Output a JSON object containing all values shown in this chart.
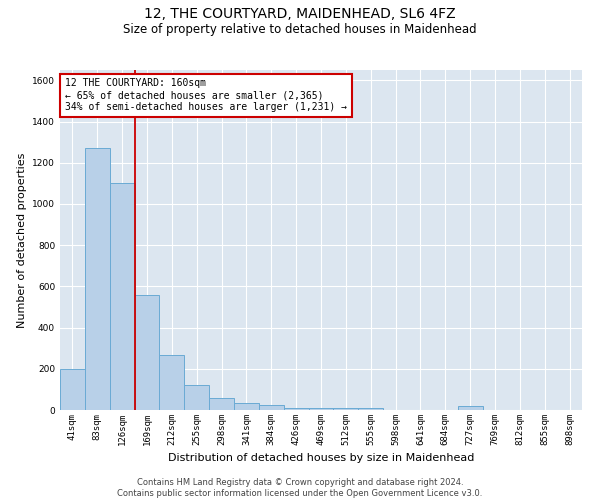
{
  "title_line1": "12, THE COURTYARD, MAIDENHEAD, SL6 4FZ",
  "title_line2": "Size of property relative to detached houses in Maidenhead",
  "xlabel": "Distribution of detached houses by size in Maidenhead",
  "ylabel": "Number of detached properties",
  "footer_line1": "Contains HM Land Registry data © Crown copyright and database right 2024.",
  "footer_line2": "Contains public sector information licensed under the Open Government Licence v3.0.",
  "bar_labels": [
    "41sqm",
    "83sqm",
    "126sqm",
    "169sqm",
    "212sqm",
    "255sqm",
    "298sqm",
    "341sqm",
    "384sqm",
    "426sqm",
    "469sqm",
    "512sqm",
    "555sqm",
    "598sqm",
    "641sqm",
    "684sqm",
    "727sqm",
    "769sqm",
    "812sqm",
    "855sqm",
    "898sqm"
  ],
  "bar_values": [
    197,
    1270,
    1100,
    557,
    265,
    120,
    57,
    32,
    22,
    10,
    10,
    10,
    10,
    0,
    0,
    0,
    18,
    0,
    0,
    0,
    0
  ],
  "bar_color": "#b8d0e8",
  "bar_edge_color": "#6aaad4",
  "background_color": "#dce6f0",
  "grid_color": "#ffffff",
  "vline_color": "#cc0000",
  "vline_pos": 2.5,
  "annotation_text": "12 THE COURTYARD: 160sqm\n← 65% of detached houses are smaller (2,365)\n34% of semi-detached houses are larger (1,231) →",
  "annotation_box_color": "#cc0000",
  "ylim": [
    0,
    1650
  ],
  "yticks": [
    0,
    200,
    400,
    600,
    800,
    1000,
    1200,
    1400,
    1600
  ],
  "title_fontsize": 10,
  "subtitle_fontsize": 8.5,
  "ylabel_fontsize": 8,
  "xlabel_fontsize": 8,
  "footer_fontsize": 6,
  "ann_fontsize": 7,
  "tick_fontsize": 6.5
}
